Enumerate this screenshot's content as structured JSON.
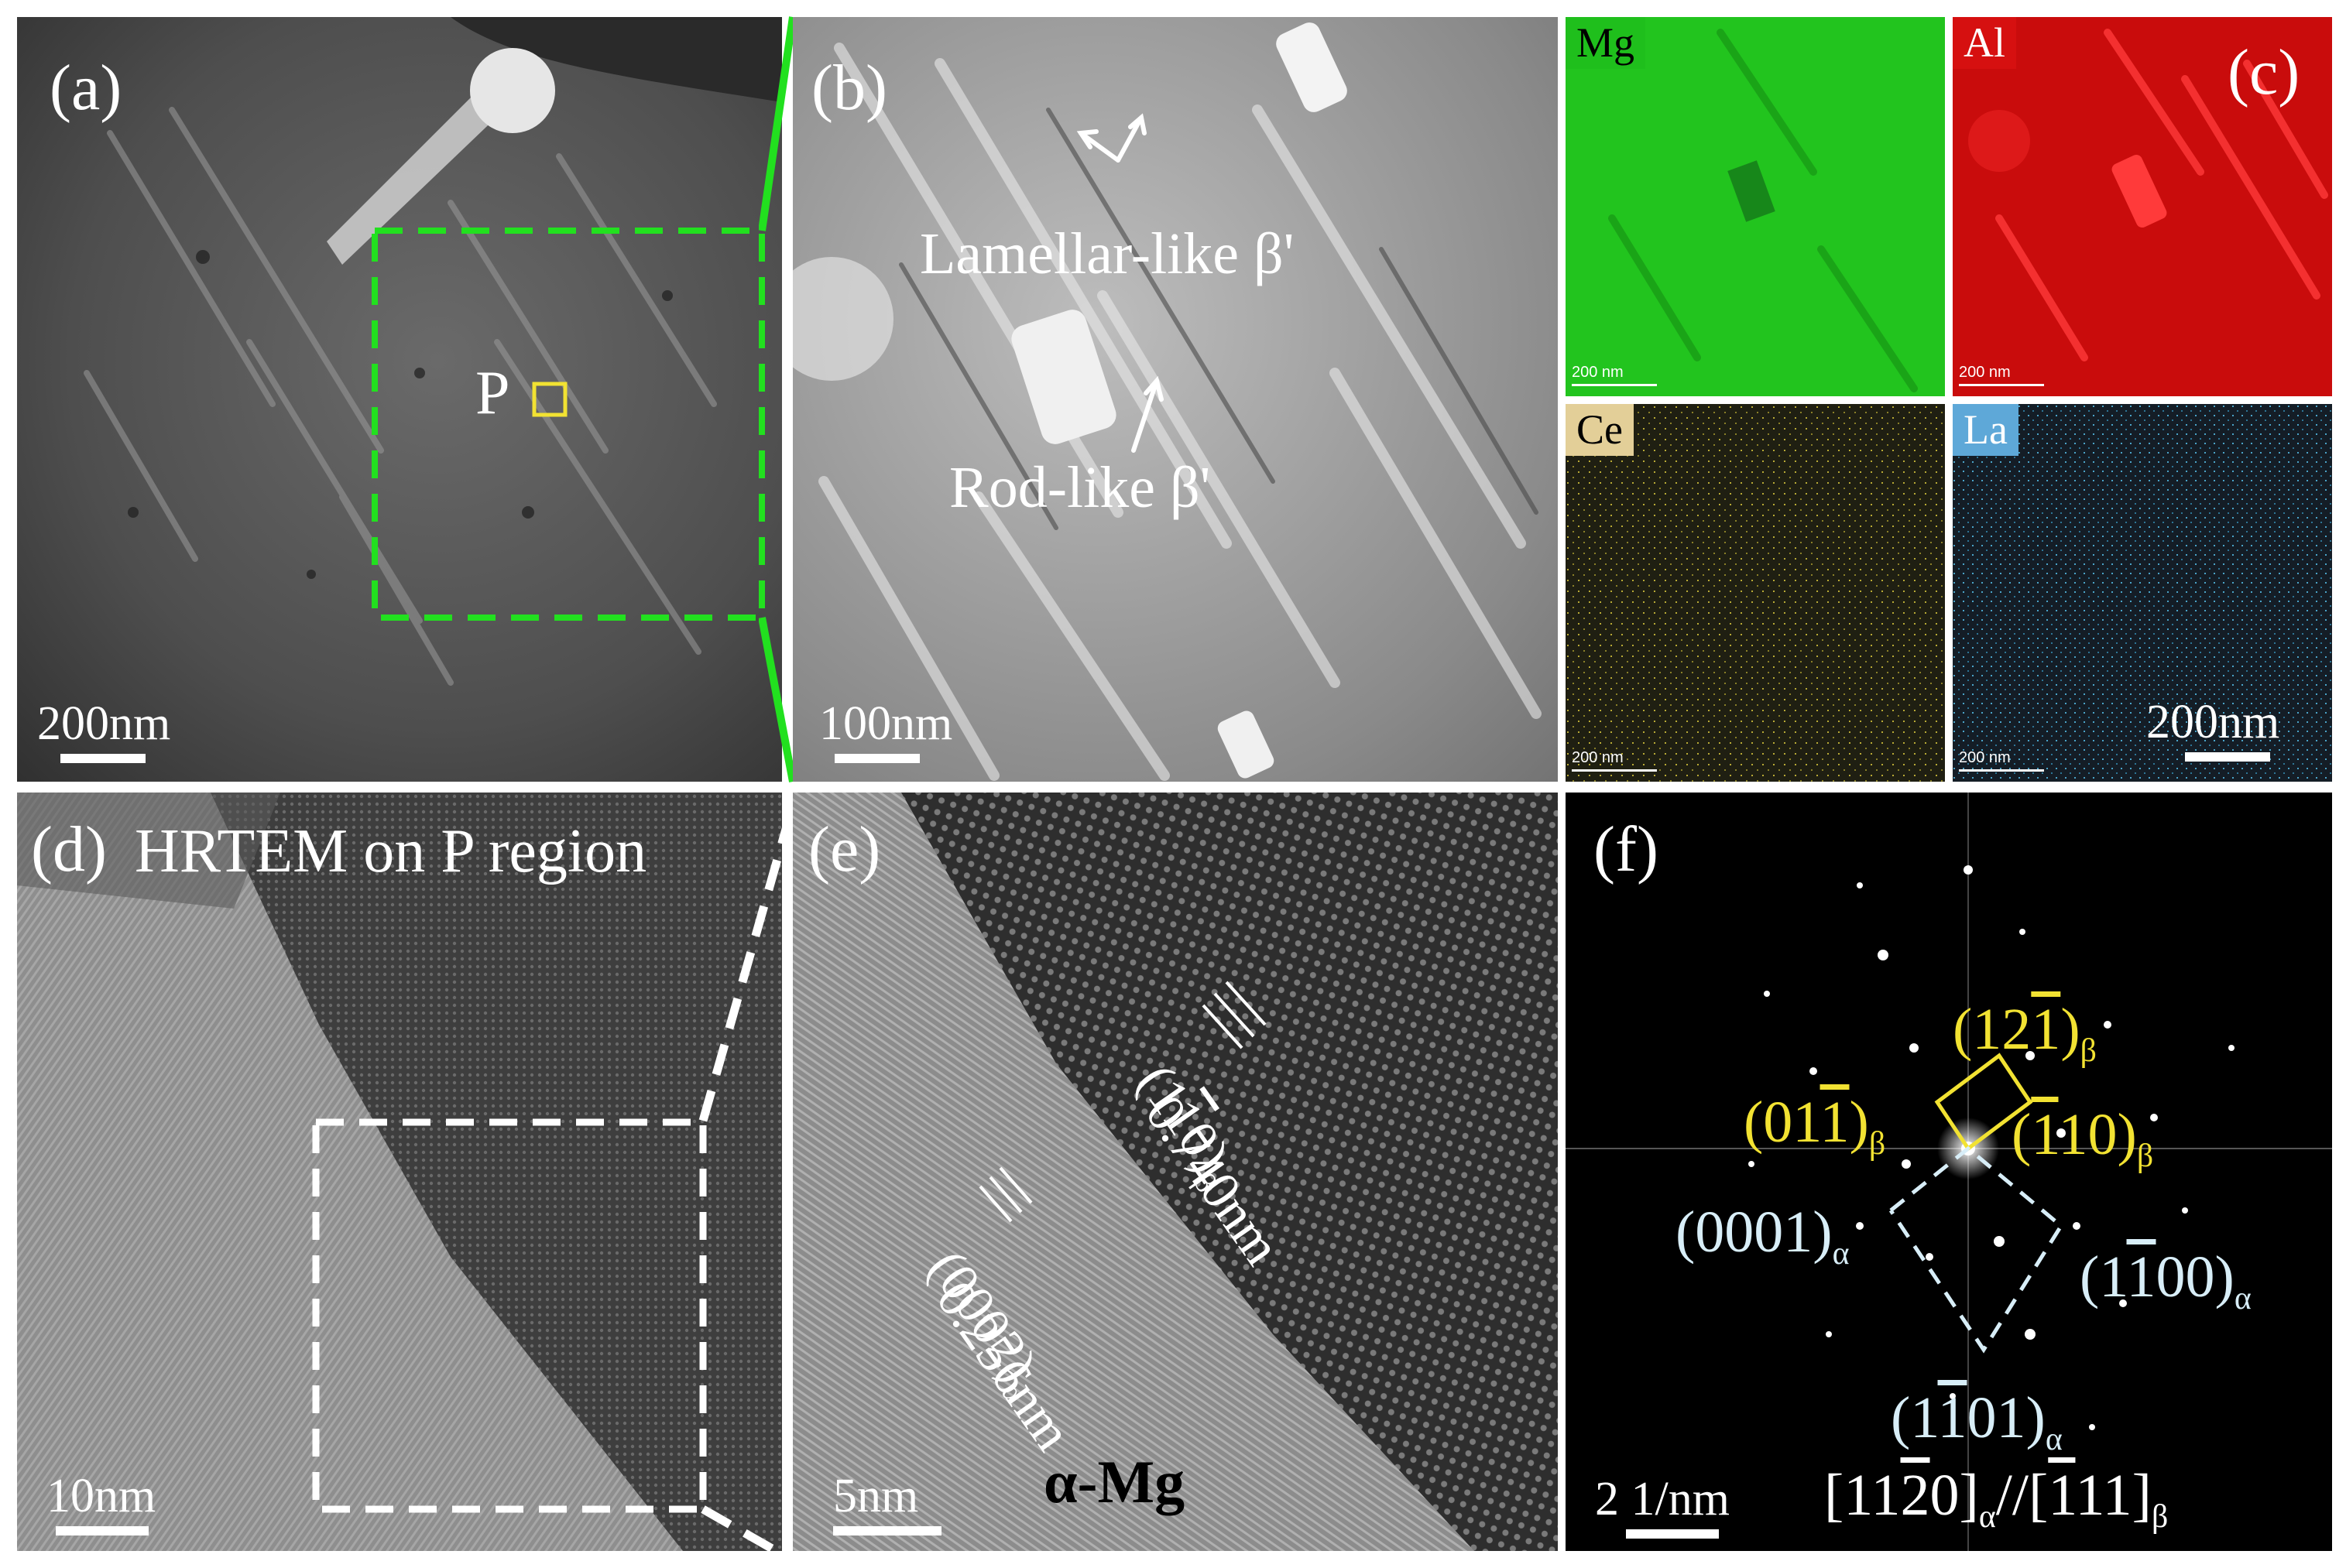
{
  "panels": {
    "a": {
      "label": "(a)",
      "marker": "P",
      "scale": "200nm"
    },
    "b": {
      "label": "(b)",
      "scale": "100nm",
      "lamellar": "Lamellar-like β'",
      "rod": "Rod-like β'"
    },
    "c": {
      "label": "(c)",
      "maps": [
        {
          "element": "Mg",
          "color": "#22c41e",
          "tag_color": "#1fbf1c"
        },
        {
          "element": "Al",
          "color": "#d40d0d",
          "tag_color": "#d61010"
        },
        {
          "element": "Ce",
          "color": "#1f1f12",
          "tag_color": "#e3cf98"
        },
        {
          "element": "La",
          "color": "#141d26",
          "tag_color": "#5ea8d8"
        }
      ],
      "small_scale": "200 nm",
      "scale": "200nm"
    },
    "d": {
      "label": "(d)",
      "title": "HRTEM on P region",
      "scale": "10nm"
    },
    "e": {
      "label": "(e)",
      "scale": "5nm",
      "spacing1": "0.740nm",
      "plane1": "(1",
      "plane1_bar": "1",
      "plane1_tail": "0)",
      "plane1_sub": "β",
      "spacing2": "0.256nm",
      "plane2": "(0002)",
      "plane2_sub": "α",
      "phase": "α-Mg"
    },
    "f": {
      "label": "(f)",
      "scale": "2 1/nm",
      "spot_12_1": {
        "pre": "(12",
        "bar": "1",
        "post": ")",
        "sub": "β"
      },
      "spot_01_1": {
        "pre": "(01",
        "bar": "1",
        "post": ")",
        "sub": "β"
      },
      "spot_1_10": {
        "pre": "(",
        "bar": "1",
        "post": "10)",
        "sub": "β"
      },
      "spot_0001": {
        "pre": "(0001)",
        "bar": "",
        "post": "",
        "sub": "α"
      },
      "spot_1_100": {
        "pre": "(1",
        "bar": "1",
        "post": "00)",
        "sub": "α"
      },
      "spot_1_101": {
        "pre": "(1",
        "bar": "1",
        "post": "01)",
        "sub": "α"
      },
      "zone": {
        "a_pre": "[11",
        "a_bar": "2",
        "a_post": "0]",
        "a_sub": "α",
        "sep": "//",
        "b_pre": "[",
        "b_bar": "1",
        "b_post": "11]",
        "b_sub": "β"
      }
    }
  },
  "colors": {
    "green_box": "#22e01f",
    "yellow_box": "#f2e232",
    "white_box": "#ffffff",
    "pattern_blue": "#d8eef8"
  }
}
